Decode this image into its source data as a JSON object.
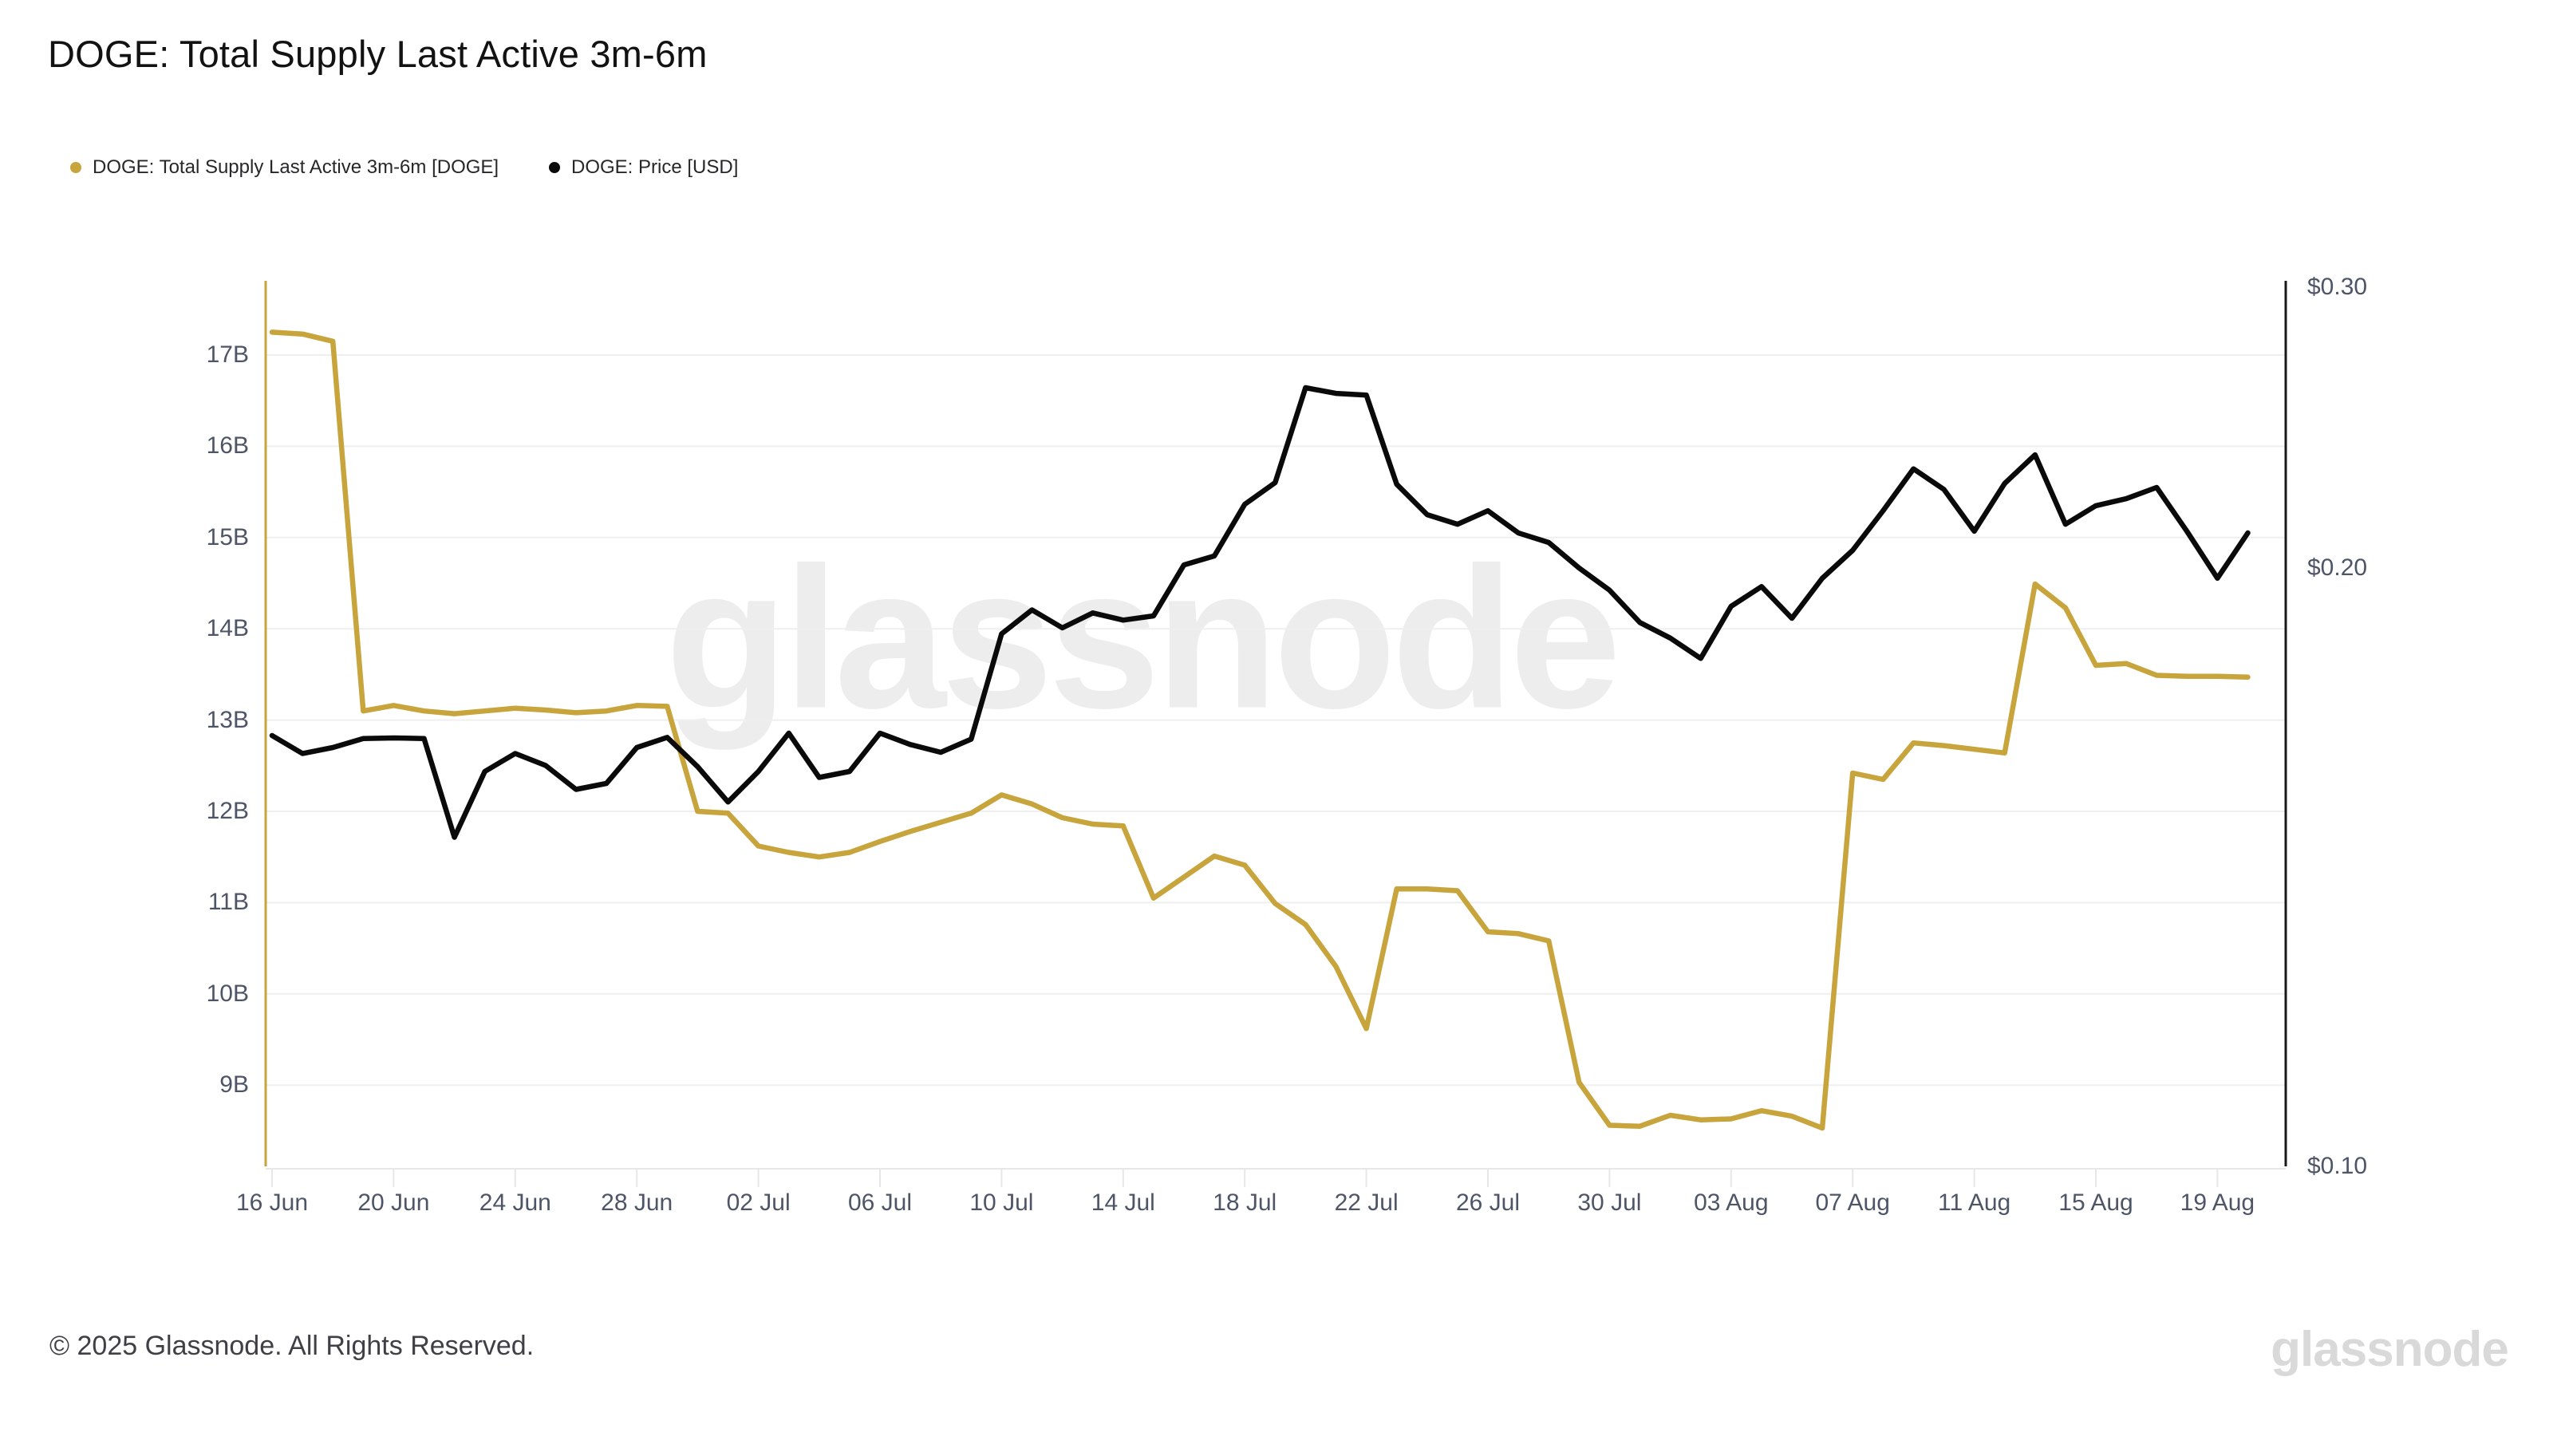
{
  "header": {
    "title": "DOGE: Total Supply Last Active 3m-6m"
  },
  "legend": [
    {
      "label": "DOGE: Total Supply Last Active 3m-6m [DOGE]",
      "color": "#c8a43c"
    },
    {
      "label": "DOGE: Price [USD]",
      "color": "#0a0a0a"
    }
  ],
  "watermark": "glassnode",
  "footer": {
    "copyright": "© 2025 Glassnode. All Rights Reserved.",
    "logo": "glassnode"
  },
  "chart_data": {
    "type": "line",
    "title": "DOGE: Total Supply Last Active 3m-6m",
    "grid": "horizontal",
    "legend_position": "top-left",
    "x": [
      "16 Jun",
      "17 Jun",
      "18 Jun",
      "19 Jun",
      "20 Jun",
      "21 Jun",
      "22 Jun",
      "23 Jun",
      "24 Jun",
      "25 Jun",
      "26 Jun",
      "27 Jun",
      "28 Jun",
      "29 Jun",
      "30 Jun",
      "01 Jul",
      "02 Jul",
      "03 Jul",
      "04 Jul",
      "05 Jul",
      "06 Jul",
      "07 Jul",
      "08 Jul",
      "09 Jul",
      "10 Jul",
      "11 Jul",
      "12 Jul",
      "13 Jul",
      "14 Jul",
      "15 Jul",
      "16 Jul",
      "17 Jul",
      "18 Jul",
      "19 Jul",
      "20 Jul",
      "21 Jul",
      "22 Jul",
      "23 Jul",
      "24 Jul",
      "25 Jul",
      "26 Jul",
      "27 Jul",
      "28 Jul",
      "29 Jul",
      "30 Jul",
      "31 Jul",
      "01 Aug",
      "02 Aug",
      "03 Aug",
      "04 Aug",
      "05 Aug",
      "06 Aug",
      "07 Aug",
      "08 Aug",
      "09 Aug",
      "10 Aug",
      "11 Aug",
      "12 Aug",
      "13 Aug",
      "14 Aug",
      "15 Aug",
      "16 Aug",
      "17 Aug",
      "18 Aug",
      "19 Aug",
      "20 Aug"
    ],
    "x_tick_step": 4,
    "x_ticks": [
      "16 Jun",
      "20 Jun",
      "24 Jun",
      "28 Jun",
      "02 Jul",
      "06 Jul",
      "10 Jul",
      "14 Jul",
      "18 Jul",
      "22 Jul",
      "26 Jul",
      "30 Jul",
      "03 Aug",
      "07 Aug",
      "11 Aug",
      "15 Aug",
      "19 Aug"
    ],
    "series": [
      {
        "name": "DOGE: Total Supply Last Active 3m-6m [DOGE]",
        "axis": "left",
        "unit": "B DOGE",
        "color": "#c8a43c",
        "values": [
          17.25,
          17.23,
          17.15,
          13.1,
          13.16,
          13.1,
          13.07,
          13.1,
          13.13,
          13.11,
          13.08,
          13.1,
          13.16,
          13.15,
          12.0,
          11.98,
          11.62,
          11.55,
          11.5,
          11.55,
          11.67,
          11.78,
          11.88,
          11.98,
          12.18,
          12.08,
          11.93,
          11.86,
          11.84,
          11.05,
          11.28,
          11.51,
          11.41,
          10.99,
          10.76,
          10.3,
          9.62,
          11.15,
          11.15,
          11.13,
          10.68,
          10.66,
          10.58,
          9.03,
          8.56,
          8.55,
          8.67,
          8.62,
          8.63,
          8.72,
          8.66,
          8.53,
          12.42,
          12.35,
          12.75,
          12.72,
          12.68,
          12.64,
          14.49,
          14.23,
          13.6,
          13.62,
          13.49,
          13.48,
          13.48,
          13.47
        ]
      },
      {
        "name": "DOGE: Price [USD]",
        "axis": "right",
        "unit": "USD",
        "color": "#0a0a0a",
        "values": [
          0.172,
          0.169,
          0.17,
          0.1715,
          0.1716,
          0.1715,
          0.155,
          0.166,
          0.169,
          0.167,
          0.163,
          0.164,
          0.17,
          0.1717,
          0.1668,
          0.1609,
          0.166,
          0.1724,
          0.165,
          0.166,
          0.1724,
          0.1705,
          0.1692,
          0.1714,
          0.189,
          0.193,
          0.19,
          0.1925,
          0.1913,
          0.192,
          0.2011,
          0.2043,
          0.2227,
          0.2304,
          0.2642,
          0.2622,
          0.2616,
          0.2298,
          0.219,
          0.2156,
          0.2204,
          0.2125,
          0.2091,
          0.2,
          0.1963,
          0.1909,
          0.1883,
          0.1849,
          0.1936,
          0.1969,
          0.1916,
          0.1983,
          0.2063,
          0.2204,
          0.2353,
          0.228,
          0.2131,
          0.2301,
          0.2403,
          0.2156,
          0.2222,
          0.2247,
          0.2287,
          0.213,
          0.1983,
          0.2125
        ]
      }
    ],
    "left_axis": {
      "tick_values": [
        17,
        16,
        15,
        14,
        13,
        12,
        11,
        10,
        9
      ],
      "tick_labels": [
        "17B",
        "16B",
        "15B",
        "14B",
        "13B",
        "12B",
        "11B",
        "10B",
        "9B"
      ]
    },
    "right_axis": {
      "tick_values": [
        0.3,
        0.2,
        0.1
      ],
      "tick_labels": [
        "$0.30",
        "$0.20",
        "$0.10"
      ]
    }
  }
}
